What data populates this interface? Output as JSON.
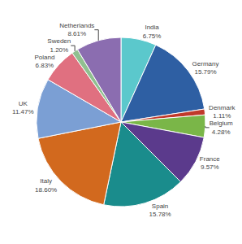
{
  "chart_data": {
    "type": "pie",
    "categories": [
      "India",
      "Germany",
      "Denmark",
      "Belgium",
      "France",
      "Spain",
      "Italy",
      "UK",
      "Poland",
      "Sweden",
      "Netherlands"
    ],
    "values": [
      6.75,
      15.79,
      1.11,
      4.28,
      9.57,
      15.78,
      18.6,
      11.47,
      6.83,
      1.2,
      8.61
    ],
    "value_labels": [
      "6.75%",
      "15.79%",
      "1.11%",
      "4.28%",
      "9.57%",
      "15.78%",
      "18.60%",
      "11.47%",
      "6.83%",
      "1.20%",
      "8.61%"
    ],
    "colors": [
      "#5bc8cc",
      "#2e5fa3",
      "#c0392b",
      "#7ab648",
      "#5b3a8c",
      "#1a8c8c",
      "#d2691e",
      "#7b9fd4",
      "#e07080",
      "#90c090",
      "#8b6db0"
    ],
    "legend": false
  }
}
